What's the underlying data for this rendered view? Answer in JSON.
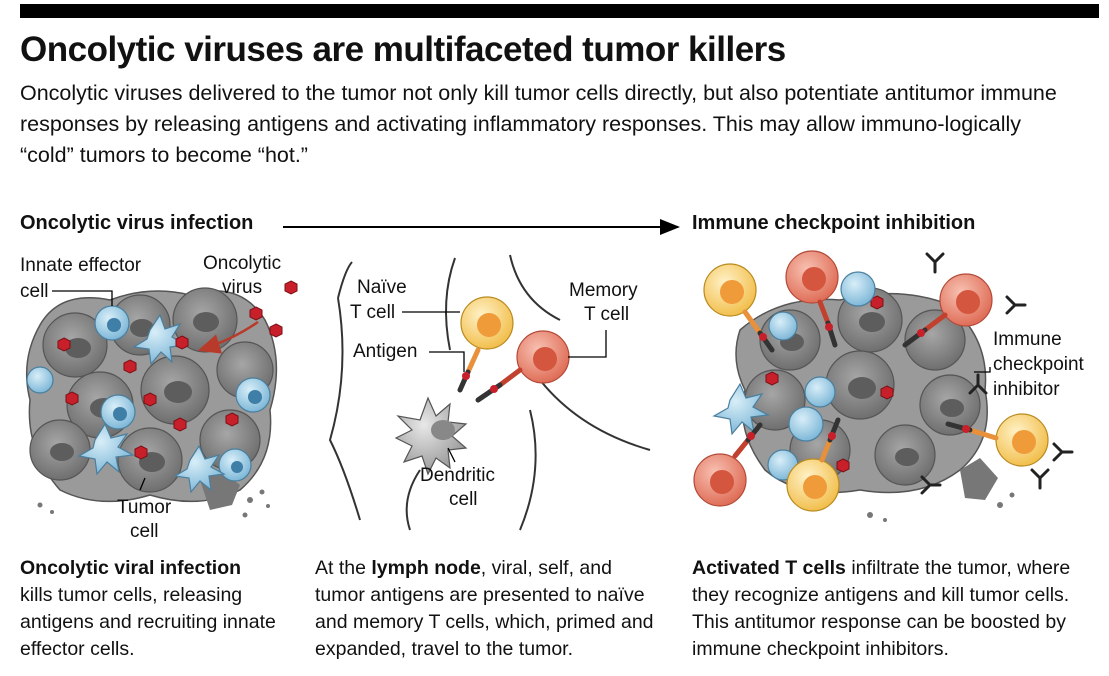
{
  "title": "Oncolytic viruses are multifaceted tumor killers",
  "subtitle": "Oncolytic viruses delivered to the tumor not only kill tumor cells directly, but also potentiate antitumor immune responses by releasing antigens and activating inflammatory responses. This may allow immuno-logically “cold” tumors to become “hot.”",
  "sections": {
    "left": "Oncolytic virus infection",
    "right": "Immune checkpoint inhibition"
  },
  "labels": {
    "innate_effector_1": "Innate effector",
    "innate_effector_2": "cell",
    "oncolytic_1": "Oncolytic",
    "oncolytic_2": "virus",
    "tumor_1": "Tumor",
    "tumor_2": "cell",
    "naive_1": "Naïve",
    "naive_2": "T cell",
    "antigen": "Antigen",
    "memory_1": "Memory",
    "memory_2": "T cell",
    "dendritic_1": "Dendritic",
    "dendritic_2": "cell",
    "immune_1": "Immune",
    "immune_2": "checkpoint",
    "immune_3": "inhibitor"
  },
  "captions": {
    "left_bold": "Oncolytic viral infection",
    "left_rest": "kills tumor cells, releasing antigens and recruiting innate effector cells.",
    "mid_pre": "At the ",
    "mid_bold": "lymph node",
    "mid_rest": ", viral, self, and tumor antigens are presented to naïve and memory T cells, which, primed and expanded, travel to the tumor.",
    "right_bold": "Activated T cells",
    "right_rest": " infiltrate the tumor, where they recognize antigens and kill tumor cells. This antitumor response can be boosted by immune checkpoint inhibitors."
  },
  "colors": {
    "tumor": "#8c8c8c",
    "tumor_dark": "#6e6e6e",
    "virus": "#c8202a",
    "innate": "#a9d3ea",
    "naive_t": "#f6c95c",
    "memory_t": "#e8826c",
    "arrow": "#b83a2a"
  }
}
